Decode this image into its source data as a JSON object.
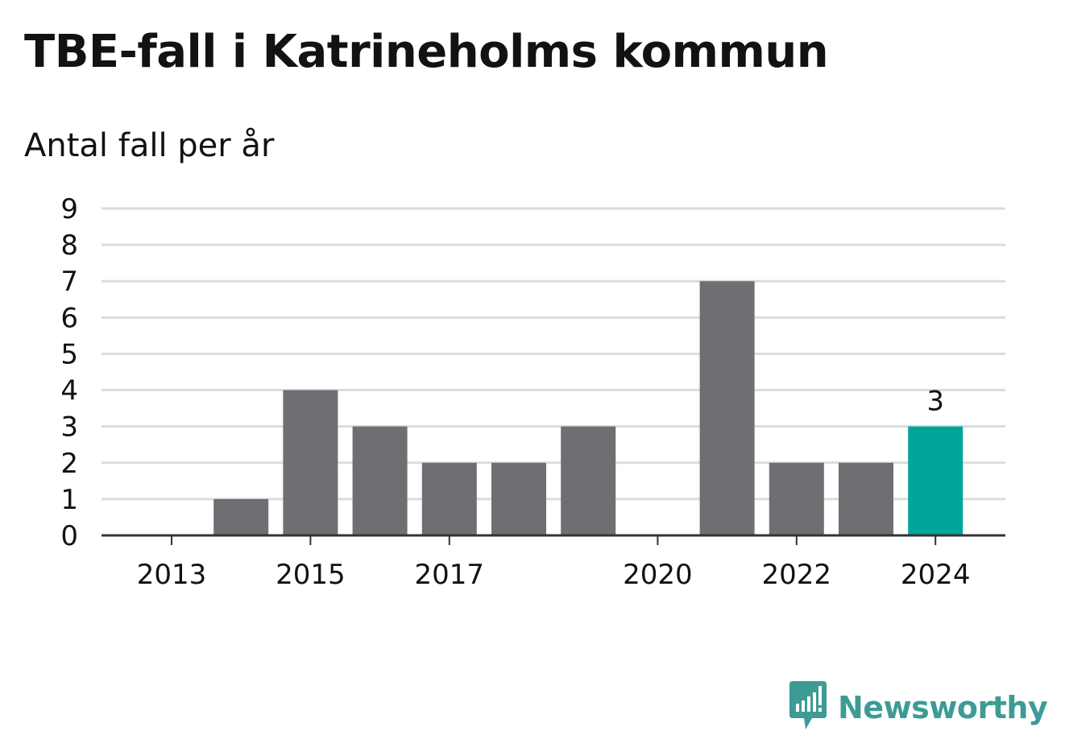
{
  "chart_data": {
    "type": "bar",
    "title": "TBE-fall i Katrineholms kommun",
    "subtitle": "Antal fall per år",
    "categories": [
      "2013",
      "2014",
      "2015",
      "2016",
      "2017",
      "2018",
      "2019",
      "2020",
      "2021",
      "2022",
      "2023",
      "2024"
    ],
    "values": [
      0,
      1,
      4,
      3,
      2,
      2,
      3,
      0,
      7,
      2,
      2,
      3
    ],
    "x_tick_labels": [
      "2013",
      "",
      "2015",
      "",
      "2017",
      "",
      "",
      "2020",
      "",
      "2022",
      "",
      "2024"
    ],
    "y_ticks": [
      "0",
      "1",
      "2",
      "3",
      "4",
      "5",
      "6",
      "7",
      "8",
      "9"
    ],
    "ylim": [
      0,
      9
    ],
    "grid": true,
    "highlight_index": 11,
    "highlight_label": "3",
    "colors": {
      "bar": "#6f6e73",
      "highlight": "#00a59a",
      "grid": "#dcdcdc",
      "axis": "#333333",
      "text": "#121212"
    }
  },
  "branding": {
    "name": "Newsworthy",
    "color": "#3d9b95",
    "icon": "newsworthy-bar-chart-bubble-icon"
  }
}
